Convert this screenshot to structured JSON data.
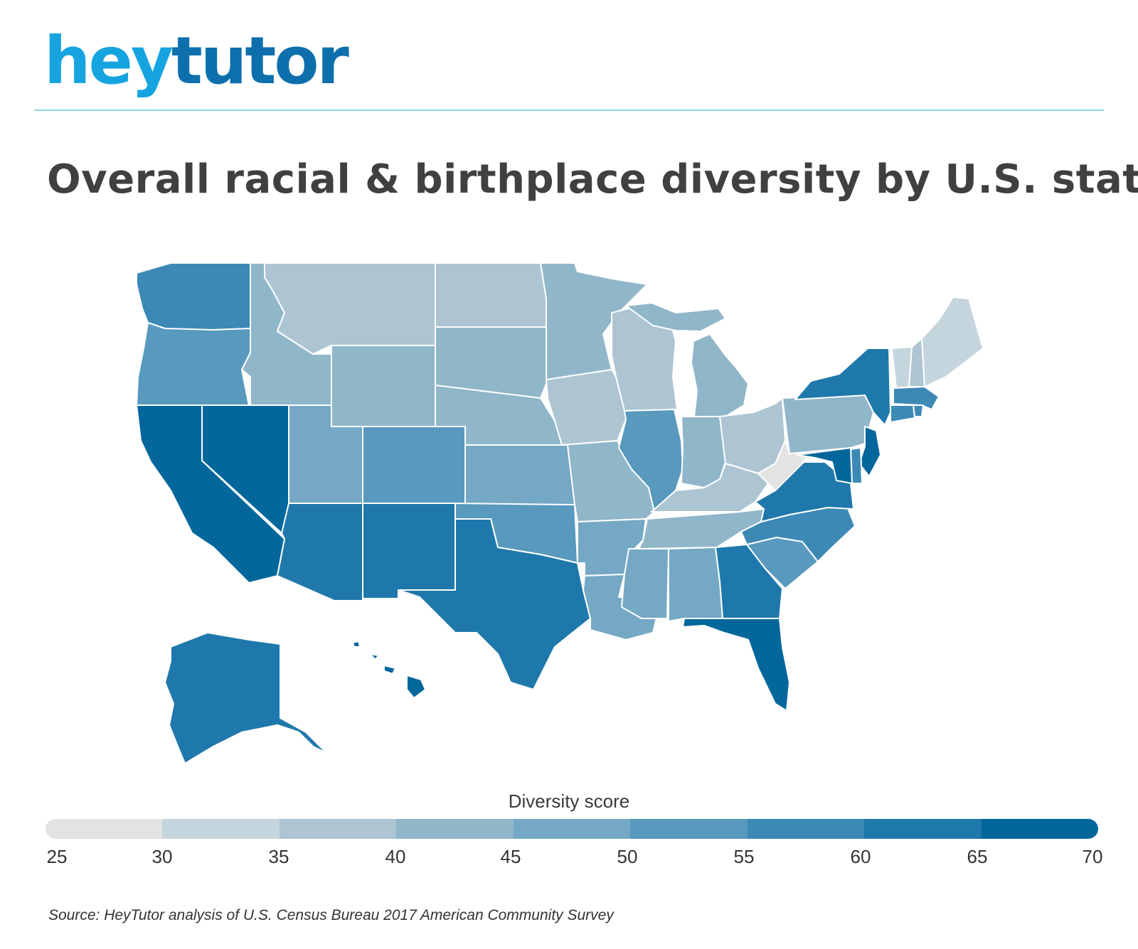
{
  "brand": {
    "hey": "hey",
    "tutor": "tutor"
  },
  "title": "Overall racial & birthplace diversity by U.S. state",
  "legend": {
    "title": "Diversity score",
    "ticks": [
      "25",
      "30",
      "35",
      "40",
      "45",
      "50",
      "55",
      "60",
      "65",
      "70"
    ],
    "colors": [
      "#e3e3e3",
      "#c5d5dd",
      "#adc5d3",
      "#90b6ca",
      "#74a8c5",
      "#5899bd",
      "#3c89b6",
      "#1f78ab",
      "#03679c"
    ]
  },
  "source": "Source: HeyTutor analysis of U.S. Census Bureau 2017 American Community Survey",
  "map_data": {
    "type": "choropleth",
    "value_range": [
      25,
      70
    ],
    "states": [
      {
        "name": "Washington",
        "bin": 6
      },
      {
        "name": "Oregon",
        "bin": 5
      },
      {
        "name": "California",
        "bin": 8
      },
      {
        "name": "Nevada",
        "bin": 8
      },
      {
        "name": "Idaho",
        "bin": 3
      },
      {
        "name": "Montana",
        "bin": 2
      },
      {
        "name": "Wyoming",
        "bin": 3
      },
      {
        "name": "Utah",
        "bin": 4
      },
      {
        "name": "Arizona",
        "bin": 7
      },
      {
        "name": "Colorado",
        "bin": 5
      },
      {
        "name": "New Mexico",
        "bin": 7
      },
      {
        "name": "North Dakota",
        "bin": 2
      },
      {
        "name": "South Dakota",
        "bin": 3
      },
      {
        "name": "Nebraska",
        "bin": 3
      },
      {
        "name": "Kansas",
        "bin": 4
      },
      {
        "name": "Oklahoma",
        "bin": 5
      },
      {
        "name": "Texas",
        "bin": 7
      },
      {
        "name": "Minnesota",
        "bin": 3
      },
      {
        "name": "Iowa",
        "bin": 2
      },
      {
        "name": "Missouri",
        "bin": 3
      },
      {
        "name": "Arkansas",
        "bin": 4
      },
      {
        "name": "Louisiana",
        "bin": 4
      },
      {
        "name": "Wisconsin",
        "bin": 2
      },
      {
        "name": "Illinois",
        "bin": 5
      },
      {
        "name": "Michigan",
        "bin": 3
      },
      {
        "name": "Indiana",
        "bin": 3
      },
      {
        "name": "Ohio",
        "bin": 2
      },
      {
        "name": "Kentucky",
        "bin": 2
      },
      {
        "name": "Tennessee",
        "bin": 3
      },
      {
        "name": "Mississippi",
        "bin": 4
      },
      {
        "name": "Alabama",
        "bin": 4
      },
      {
        "name": "Georgia",
        "bin": 7
      },
      {
        "name": "Florida",
        "bin": 8
      },
      {
        "name": "South Carolina",
        "bin": 5
      },
      {
        "name": "North Carolina",
        "bin": 6
      },
      {
        "name": "Virginia",
        "bin": 7
      },
      {
        "name": "West Virginia",
        "bin": 0
      },
      {
        "name": "Pennsylvania",
        "bin": 3
      },
      {
        "name": "New York",
        "bin": 7
      },
      {
        "name": "Vermont",
        "bin": 1
      },
      {
        "name": "New Hampshire",
        "bin": 2
      },
      {
        "name": "Maine",
        "bin": 1
      },
      {
        "name": "Massachusetts",
        "bin": 6
      },
      {
        "name": "Rhode Island",
        "bin": 6
      },
      {
        "name": "Connecticut",
        "bin": 6
      },
      {
        "name": "New Jersey",
        "bin": 8
      },
      {
        "name": "Delaware",
        "bin": 6
      },
      {
        "name": "Maryland",
        "bin": 8
      },
      {
        "name": "Alaska",
        "bin": 7
      },
      {
        "name": "Hawaii",
        "bin": 8
      }
    ]
  }
}
